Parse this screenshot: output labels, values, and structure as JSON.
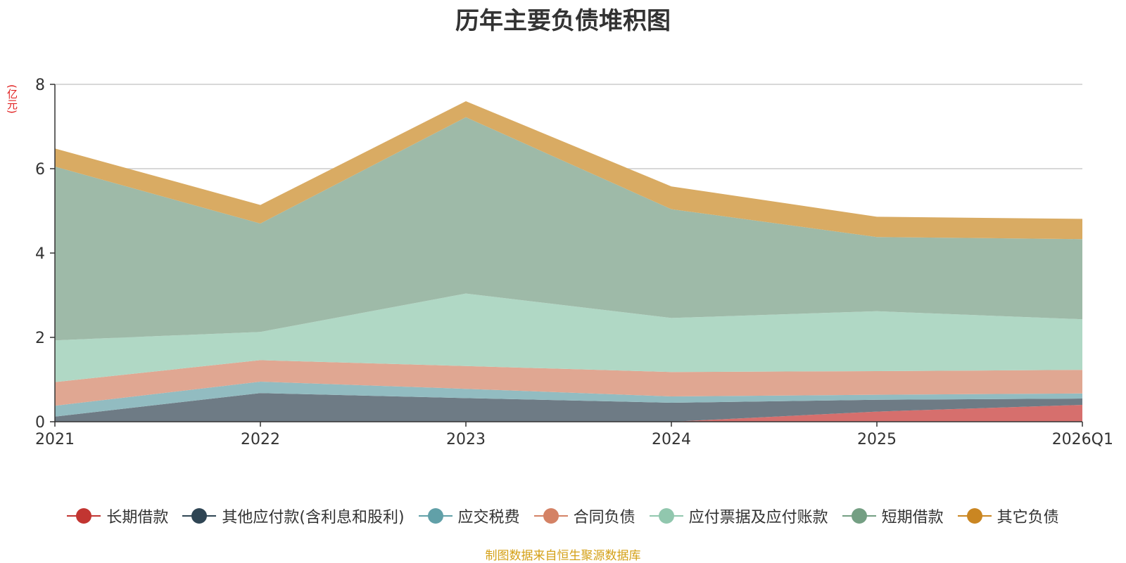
{
  "chart_data": {
    "type": "area",
    "stacked": true,
    "title": "历年主要负债堆积图",
    "ylabel": "(亿元)",
    "xlabel": "",
    "categories": [
      "2021",
      "2022",
      "2023",
      "2024",
      "2025",
      "2026Q1"
    ],
    "ylim": [
      0,
      8
    ],
    "yticks": [
      0,
      2,
      4,
      6,
      8
    ],
    "grid": true,
    "legend_position": "bottom",
    "series": [
      {
        "name": "长期借款",
        "color": "#c23531",
        "fill": "#d66f6d",
        "values": [
          0,
          0,
          0,
          0,
          0.24,
          0.4
        ]
      },
      {
        "name": "其他应付款(含利息和股利)",
        "color": "#2f4554",
        "fill": "#6e7b85",
        "values": [
          0.12,
          0.68,
          0.56,
          0.45,
          0.28,
          0.15
        ]
      },
      {
        "name": "应交税费",
        "color": "#61a0a8",
        "fill": "#92bcc1",
        "values": [
          0.26,
          0.27,
          0.22,
          0.15,
          0.12,
          0.12
        ]
      },
      {
        "name": "合同负债",
        "color": "#d48265",
        "fill": "#e0a792",
        "values": [
          0.56,
          0.51,
          0.54,
          0.58,
          0.56,
          0.56
        ]
      },
      {
        "name": "应付票据及应付账款",
        "color": "#91c7ae",
        "fill": "#b0d8c5",
        "values": [
          0.99,
          0.67,
          1.72,
          1.28,
          1.42,
          1.2
        ]
      },
      {
        "name": "短期借款",
        "color": "#749f83",
        "fill": "#9ebaa8",
        "values": [
          4.12,
          2.57,
          4.18,
          2.58,
          1.76,
          1.9
        ]
      },
      {
        "name": "其它负债",
        "color": "#ca8622",
        "fill": "#d9ab63",
        "values": [
          0.43,
          0.44,
          0.38,
          0.54,
          0.48,
          0.48
        ]
      }
    ]
  },
  "footer": {
    "source": "制图数据来自恒生聚源数据库"
  }
}
